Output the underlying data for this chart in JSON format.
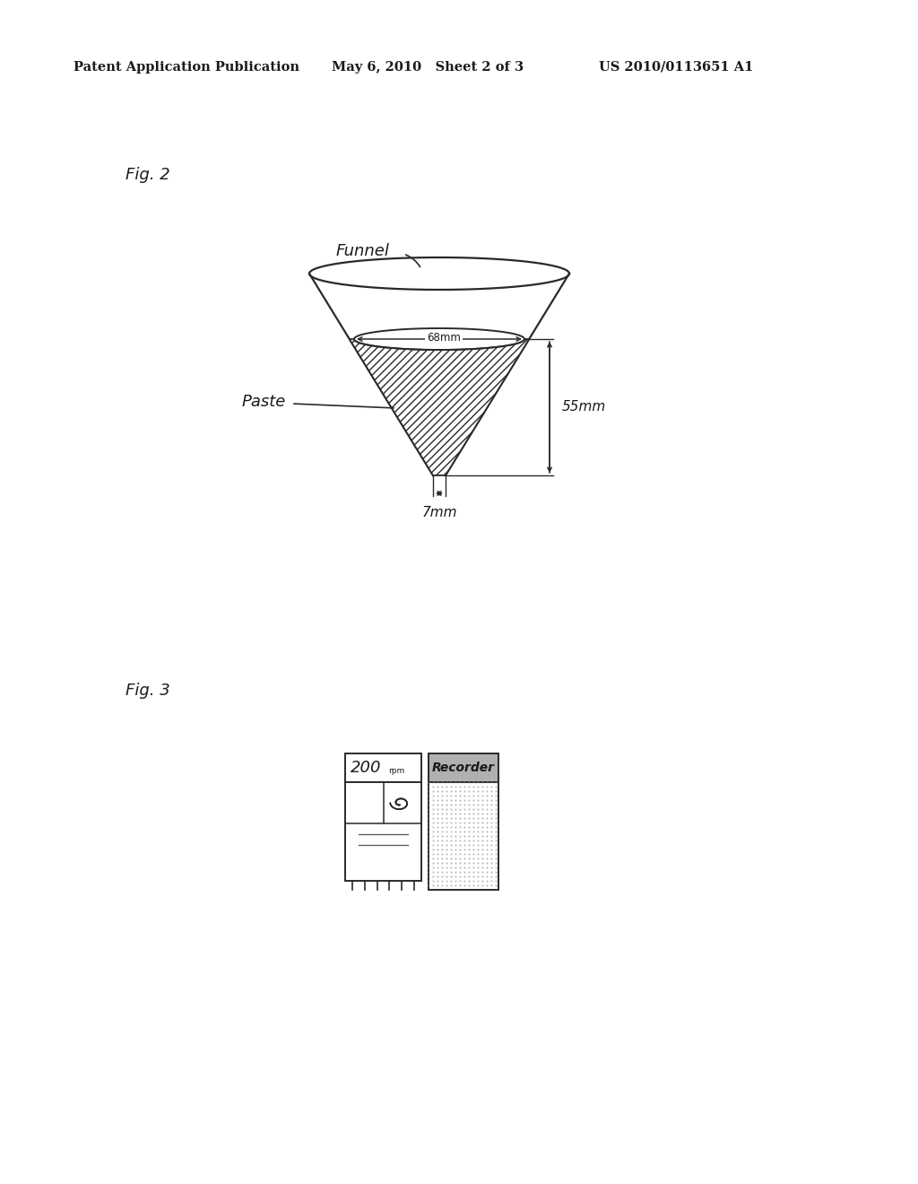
{
  "bg_color": "#ffffff",
  "header_left": "Patent Application Publication",
  "header_mid": "May 6, 2010   Sheet 2 of 3",
  "header_right": "US 2010/0113651 A1",
  "fig2_label": "Fig. 2",
  "fig3_label": "Fig. 3",
  "funnel_label": "Funnel",
  "paste_label": "Paste",
  "dim_68mm": "68mm",
  "dim_55mm": "55mm",
  "dim_7mm": "7mm",
  "recorder_label": "Recorder",
  "rpm_label": "200",
  "rpm_sub": "rpm"
}
